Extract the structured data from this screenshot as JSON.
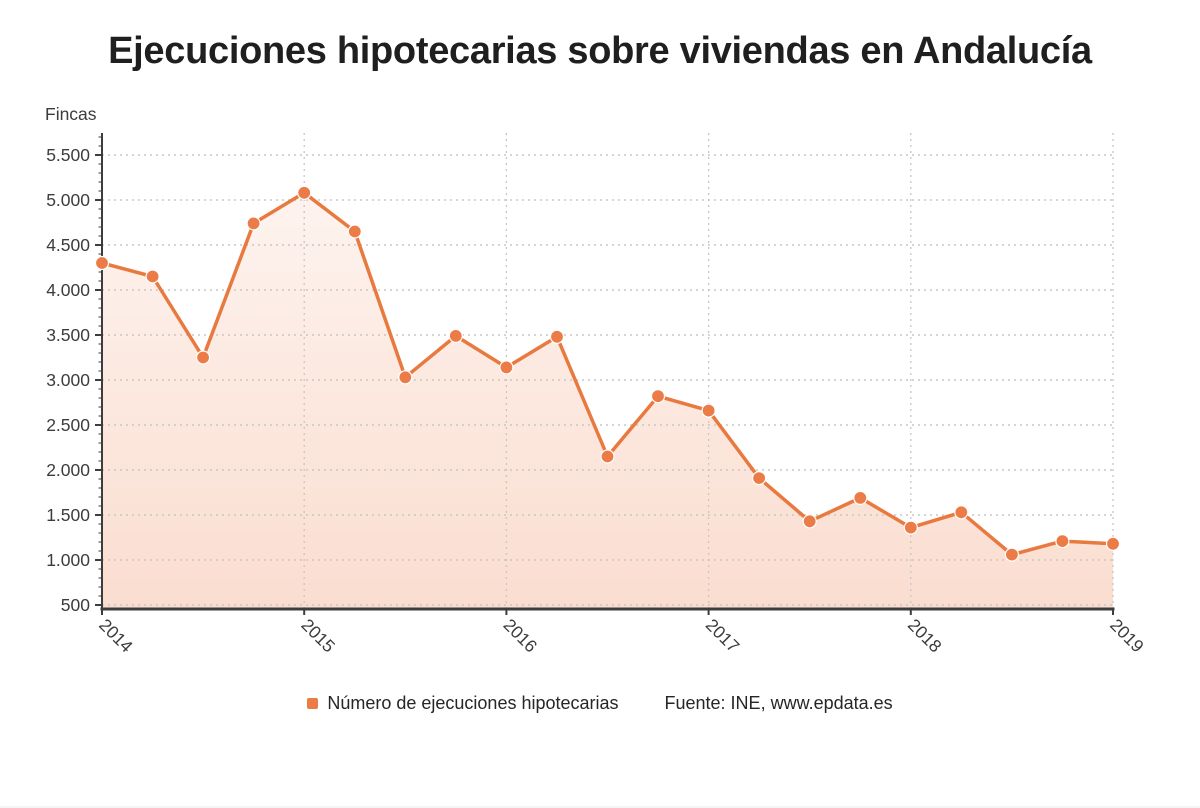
{
  "title": "Ejecuciones hipotecarias sobre viviendas en Andalucía",
  "y_axis_unit": "Fincas",
  "legend": {
    "series_label": "Número de ejecuciones hipotecarias",
    "source_label": "Fuente: INE, www.epdata.es"
  },
  "colors": {
    "line": "#e8793f",
    "marker": "#ec7c47",
    "marker_border": "#ffffff",
    "area_top": "rgba(237,124,72,0.09)",
    "area_bottom": "rgba(237,124,72,0.26)",
    "axis": "#3d3d3d",
    "grid": "#c7c7c7",
    "tick_text": "#3c3c3c",
    "title_text": "#1f1f1f"
  },
  "chart_data": {
    "type": "area",
    "title": "Ejecuciones hipotecarias sobre viviendas en Andalucía",
    "ylabel": "Fincas",
    "xlabel": "",
    "grid": true,
    "legend_position": "bottom",
    "x": [
      "2014T1",
      "2014T2",
      "2014T3",
      "2014T4",
      "2015T1",
      "2015T2",
      "2015T3",
      "2015T4",
      "2016T1",
      "2016T2",
      "2016T3",
      "2016T4",
      "2017T1",
      "2017T2",
      "2017T3",
      "2017T4",
      "2018T1",
      "2018T2",
      "2018T3",
      "2018T4",
      "2019T1"
    ],
    "series": [
      {
        "name": "Número de ejecuciones hipotecarias",
        "values": [
          4300,
          4150,
          3250,
          4740,
          5080,
          4650,
          3030,
          3490,
          3140,
          3480,
          2150,
          2820,
          2660,
          1910,
          1430,
          1690,
          1360,
          1530,
          1060,
          1210,
          1180
        ]
      }
    ],
    "x_tick_labels": [
      "2014",
      "2015",
      "2016",
      "2017",
      "2018",
      "2019"
    ],
    "x_ticks_every": 4,
    "y_ticks": [
      500,
      1000,
      1500,
      2000,
      2500,
      3000,
      3500,
      4000,
      4500,
      5000,
      5500
    ],
    "y_tick_labels": [
      "500",
      "1.000",
      "1.500",
      "2.000",
      "2.500",
      "3.000",
      "3.500",
      "4.000",
      "4.500",
      "5.000",
      "5.500"
    ],
    "ylim": [
      500,
      5500
    ]
  }
}
